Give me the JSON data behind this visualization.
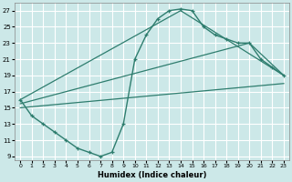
{
  "xlabel": "Humidex (Indice chaleur)",
  "bg_color": "#cce8e8",
  "grid_color": "#ffffff",
  "line_color": "#2e7d6e",
  "xlim": [
    -0.5,
    23.5
  ],
  "ylim": [
    8.5,
    28
  ],
  "xticks": [
    0,
    1,
    2,
    3,
    4,
    5,
    6,
    7,
    8,
    9,
    10,
    11,
    12,
    13,
    14,
    15,
    16,
    17,
    18,
    19,
    20,
    21,
    22,
    23
  ],
  "yticks": [
    9,
    11,
    13,
    15,
    17,
    19,
    21,
    23,
    25,
    27
  ],
  "curve_x": [
    0,
    1,
    2,
    3,
    4,
    5,
    6,
    7,
    8,
    9,
    10,
    11,
    12,
    13,
    14,
    15,
    16,
    17,
    18,
    19,
    20,
    21,
    22,
    23
  ],
  "curve_y": [
    16,
    14,
    13,
    12,
    11,
    10,
    9.5,
    9,
    9.5,
    13,
    21,
    24,
    26,
    27,
    27.2,
    27,
    25,
    24,
    23.5,
    23,
    23,
    21,
    20,
    19
  ],
  "line1_x": [
    0,
    14,
    23
  ],
  "line1_y": [
    16,
    27,
    19
  ],
  "line2_x": [
    0,
    20,
    23
  ],
  "line2_y": [
    15.5,
    23,
    19
  ],
  "line3_x": [
    0,
    23
  ],
  "line3_y": [
    15,
    18
  ]
}
